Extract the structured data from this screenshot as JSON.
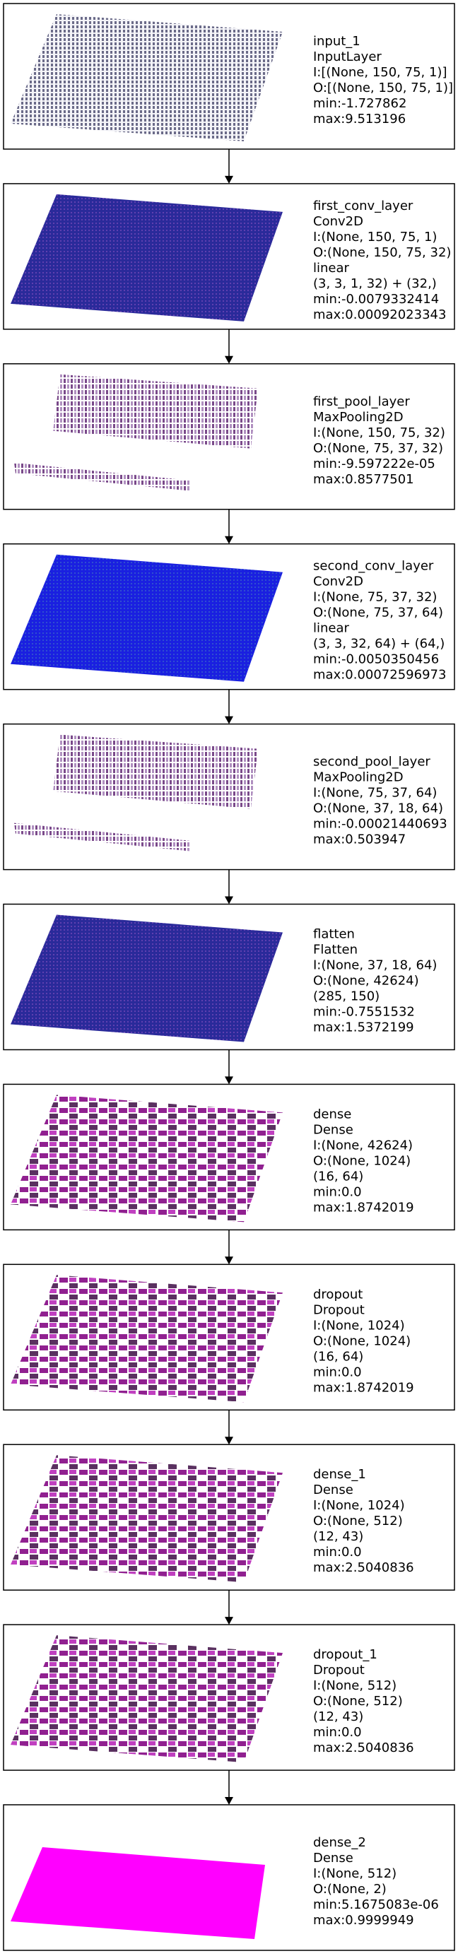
{
  "layers": [
    {
      "lines": [
        "input_1",
        "InputLayer",
        "I:[(None, 150, 75, 1)]",
        "O:[(None, 150, 75, 1)]",
        "min:-1.727862",
        "max:9.513196"
      ]
    },
    {
      "lines": [
        "first_conv_layer",
        "Conv2D",
        "I:(None, 150, 75, 1)",
        "O:(None, 150, 75, 32)",
        "linear",
        "(3, 3, 1, 32) + (32,)",
        "min:-0.0079332414",
        "max:0.00092023343"
      ]
    },
    {
      "lines": [
        "first_pool_layer",
        "MaxPooling2D",
        "I:(None, 150, 75, 32)",
        "O:(None, 75, 37, 32)",
        "min:-9.597222e-05",
        "max:0.8577501"
      ]
    },
    {
      "lines": [
        "second_conv_layer",
        "Conv2D",
        "I:(None, 75, 37, 32)",
        "O:(None, 75, 37, 64)",
        "linear",
        "(3, 3, 32, 64) + (64,)",
        "min:-0.0050350456",
        "max:0.00072596973"
      ]
    },
    {
      "lines": [
        "second_pool_layer",
        "MaxPooling2D",
        "I:(None, 75, 37, 64)",
        "O:(None, 37, 18, 64)",
        "min:-0.00021440693",
        "max:0.503947"
      ]
    },
    {
      "lines": [
        "flatten",
        "Flatten",
        "I:(None, 37, 18, 64)",
        "O:(None, 42624)",
        "(285, 150)",
        "min:-0.7551532",
        "max:1.5372199"
      ]
    },
    {
      "lines": [
        "dense",
        "Dense",
        "I:(None, 42624)",
        "O:(None, 1024)",
        "(16, 64)",
        "min:0.0",
        "max:1.8742019"
      ]
    },
    {
      "lines": [
        "dropout",
        "Dropout",
        "I:(None, 1024)",
        "O:(None, 1024)",
        "(16, 64)",
        "min:0.0",
        "max:1.8742019"
      ]
    },
    {
      "lines": [
        "dense_1",
        "Dense",
        "I:(None, 1024)",
        "O:(None, 512)",
        "(12, 43)",
        "min:0.0",
        "max:2.5040836"
      ]
    },
    {
      "lines": [
        "dropout_1",
        "Dropout",
        "I:(None, 512)",
        "O:(None, 512)",
        "(12, 43)",
        "min:0.0",
        "max:2.5040836"
      ]
    },
    {
      "lines": [
        "dense_2",
        "Dense",
        "I:(None, 512)",
        "O:(None, 2)",
        "min:5.1675083e-06",
        "max:0.9999949"
      ]
    }
  ]
}
